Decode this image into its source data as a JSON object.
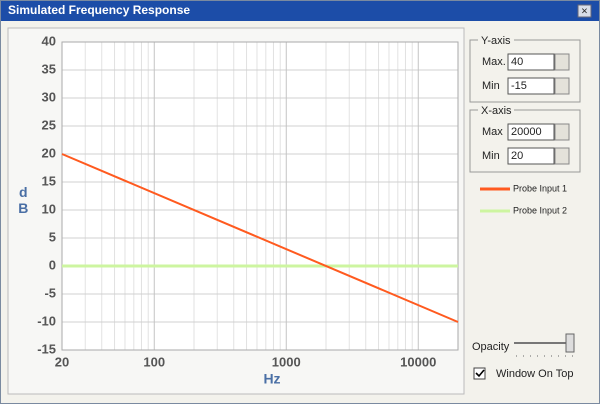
{
  "window": {
    "title": "Simulated Frequency Response",
    "close": "×"
  },
  "chart_data": {
    "type": "line",
    "x_label": "Hz",
    "y_label": "dB",
    "x": [
      20,
      20000
    ],
    "series": [
      {
        "name": "Probe Input 1",
        "color": "#ff5a1f",
        "values": [
          20,
          -10
        ]
      },
      {
        "name": "Probe Input 2",
        "color": "#cdf5a0",
        "values": [
          0,
          0
        ]
      }
    ],
    "xscale": "log",
    "xlim": [
      20,
      20000
    ],
    "xticks": [
      20,
      100,
      1000,
      10000
    ],
    "xminorticks": [
      30,
      40,
      50,
      60,
      70,
      80,
      90,
      200,
      300,
      400,
      500,
      600,
      700,
      800,
      900,
      2000,
      3000,
      4000,
      5000,
      6000,
      7000,
      8000,
      9000
    ],
    "ylim": [
      -15,
      40
    ],
    "yticks": [
      -15,
      -10,
      -5,
      0,
      5,
      10,
      15,
      20,
      25,
      30,
      35,
      40
    ],
    "grid": true
  },
  "controls": {
    "y_axis": {
      "label": "Y-axis",
      "max_label": "Max.",
      "max": 40,
      "min_label": "Min",
      "min": -15
    },
    "x_axis": {
      "label": "X-axis",
      "max_label": "Max",
      "max": 20000,
      "min_label": "Min",
      "min": 20
    },
    "opacity_label": "Opacity",
    "window_on_top": "Window On Top"
  }
}
